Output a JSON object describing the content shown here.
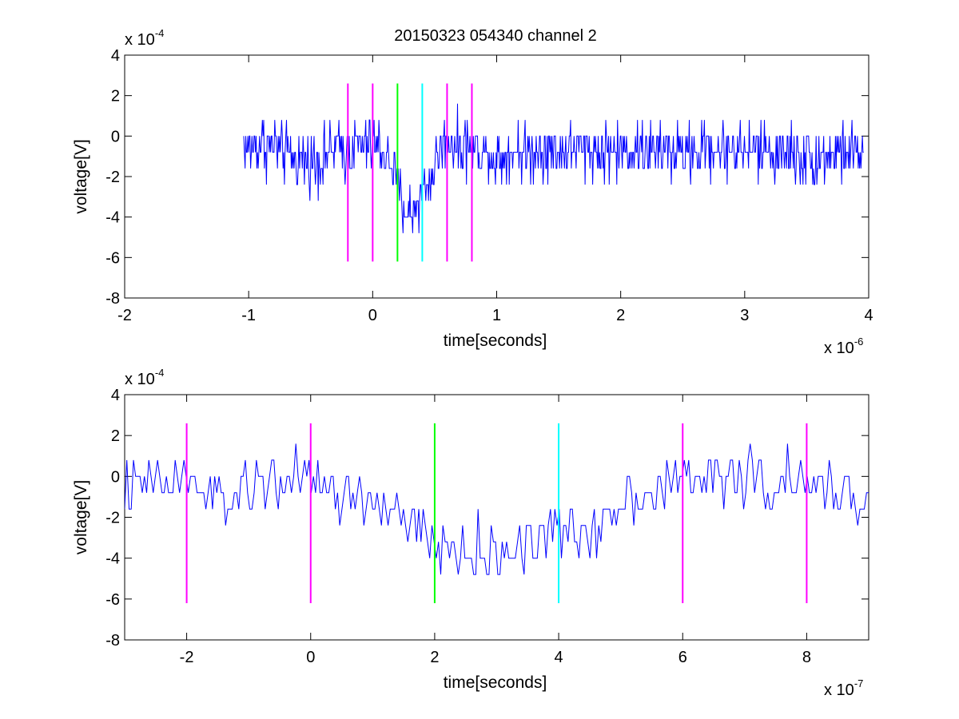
{
  "title": "20150323 054340 channel 2",
  "chart_data": [
    {
      "type": "line",
      "title": "20150323 054340 channel 2",
      "xlabel": "time[seconds]",
      "ylabel": "voltage[V]",
      "x_multiplier_text": "x 10",
      "x_multiplier_exp": "-6",
      "y_multiplier_text": "x 10",
      "y_multiplier_exp": "-4",
      "xlim": [
        -2,
        4
      ],
      "ylim": [
        -8,
        4
      ],
      "x_ticks": [
        -2,
        -1,
        0,
        1,
        2,
        3,
        4
      ],
      "y_ticks": [
        -8,
        -6,
        -4,
        -2,
        0,
        2,
        4
      ],
      "grid": false,
      "series": [
        {
          "color": "#0000ff",
          "x_start": -1.04,
          "x_end": 3.96,
          "x": [
            -1.04,
            -0.9,
            -0.8,
            -0.7,
            -0.6,
            -0.5,
            -0.4,
            -0.3,
            -0.2,
            -0.1,
            0,
            0.1,
            0.15,
            0.2,
            0.25,
            0.3,
            0.35,
            0.4,
            0.45,
            0.5,
            0.55,
            0.6,
            0.7,
            0.8,
            0.9,
            1.0,
            1.1,
            1.2,
            1.4,
            1.6,
            1.8,
            2.0,
            2.2,
            2.4,
            2.6,
            2.8,
            3.0,
            3.2,
            3.4,
            3.6,
            3.8,
            3.96
          ],
          "values": [
            -0.6,
            -0.4,
            -0.5,
            -1.0,
            -1.1,
            -1.3,
            -1.0,
            -0.6,
            -0.7,
            -0.5,
            -0.5,
            -0.9,
            -1.3,
            -2.4,
            -3.5,
            -3.8,
            -3.3,
            -2.8,
            -2.3,
            -1.6,
            -0.6,
            -0.1,
            -0.3,
            -0.6,
            -0.8,
            -1.1,
            -0.8,
            -0.7,
            -0.6,
            -0.7,
            -0.8,
            -0.7,
            -0.6,
            -0.8,
            -0.7,
            -0.6,
            -0.8,
            -0.7,
            -0.9,
            -1.0,
            -0.8,
            -0.7
          ]
        }
      ],
      "markers": [
        {
          "x": -0.2,
          "color": "#ff00ff"
        },
        {
          "x": 0,
          "color": "#ff00ff"
        },
        {
          "x": 0.2,
          "color": "#00ff00"
        },
        {
          "x": 0.4,
          "color": "#00ffff"
        },
        {
          "x": 0.6,
          "color": "#ff00ff"
        },
        {
          "x": 0.8,
          "color": "#ff00ff"
        }
      ],
      "marker_range": [
        -6.2,
        2.6
      ]
    },
    {
      "type": "line",
      "xlabel": "time[seconds]",
      "ylabel": "voltage[V]",
      "x_multiplier_text": "x 10",
      "x_multiplier_exp": "-7",
      "y_multiplier_text": "x 10",
      "y_multiplier_exp": "-4",
      "xlim": [
        -3,
        9
      ],
      "ylim": [
        -8,
        4
      ],
      "x_ticks": [
        -2,
        0,
        2,
        4,
        6,
        8
      ],
      "y_ticks": [
        -8,
        -6,
        -4,
        -2,
        0,
        2,
        4
      ],
      "grid": false,
      "series": [
        {
          "color": "#0000ff",
          "x_start": -3,
          "x_end": 9,
          "x": [
            -3,
            -2.5,
            -2.0,
            -1.5,
            -1.0,
            -0.5,
            0,
            0.5,
            1.0,
            1.5,
            2.0,
            2.5,
            3.0,
            3.5,
            4.0,
            4.5,
            5.0,
            5.5,
            6.0,
            6.5,
            7.0,
            7.5,
            8.0,
            8.5,
            9.0
          ],
          "values": [
            -0.5,
            -0.4,
            -0.3,
            -1.2,
            -0.6,
            -0.1,
            -0.3,
            -0.9,
            -1.2,
            -2.2,
            -3.4,
            -3.8,
            -3.9,
            -3.0,
            -2.6,
            -2.8,
            -1.2,
            -0.6,
            -0.2,
            -0.1,
            0.1,
            -0.4,
            -0.4,
            -0.6,
            -1.1
          ]
        }
      ],
      "markers": [
        {
          "x": -2,
          "color": "#ff00ff"
        },
        {
          "x": 0,
          "color": "#ff00ff"
        },
        {
          "x": 2,
          "color": "#00ff00"
        },
        {
          "x": 4,
          "color": "#00ffff"
        },
        {
          "x": 6,
          "color": "#ff00ff"
        },
        {
          "x": 8,
          "color": "#ff00ff"
        }
      ],
      "marker_range": [
        -6.2,
        2.6
      ]
    }
  ]
}
